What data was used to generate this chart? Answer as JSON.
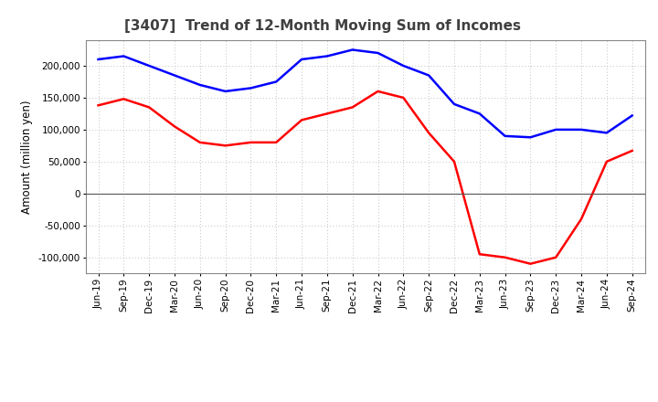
{
  "title": "[3407]  Trend of 12-Month Moving Sum of Incomes",
  "ylabel": "Amount (million yen)",
  "xlabels": [
    "Jun-19",
    "Sep-19",
    "Dec-19",
    "Mar-20",
    "Jun-20",
    "Sep-20",
    "Dec-20",
    "Mar-21",
    "Jun-21",
    "Sep-21",
    "Dec-21",
    "Mar-22",
    "Jun-22",
    "Sep-22",
    "Dec-22",
    "Mar-23",
    "Jun-23",
    "Sep-23",
    "Dec-23",
    "Mar-24",
    "Jun-24",
    "Sep-24"
  ],
  "ordinary_income": [
    210000,
    215000,
    200000,
    185000,
    170000,
    160000,
    165000,
    175000,
    210000,
    215000,
    225000,
    220000,
    200000,
    185000,
    140000,
    125000,
    90000,
    88000,
    100000,
    100000,
    95000,
    122000
  ],
  "net_income": [
    138000,
    148000,
    135000,
    105000,
    80000,
    75000,
    80000,
    80000,
    115000,
    125000,
    135000,
    160000,
    150000,
    95000,
    50000,
    -95000,
    -100000,
    -110000,
    -100000,
    -40000,
    50000,
    67000
  ],
  "ordinary_color": "#0000FF",
  "net_color": "#FF0000",
  "ylim": [
    -125000,
    240000
  ],
  "yticks": [
    -100000,
    -50000,
    0,
    50000,
    100000,
    150000,
    200000
  ],
  "background_color": "#FFFFFF",
  "grid_color": "#AAAAAA",
  "title_color": "#404040",
  "title_fontsize": 11,
  "ylabel_fontsize": 8.5,
  "tick_fontsize": 7.5,
  "legend_fontsize": 9
}
